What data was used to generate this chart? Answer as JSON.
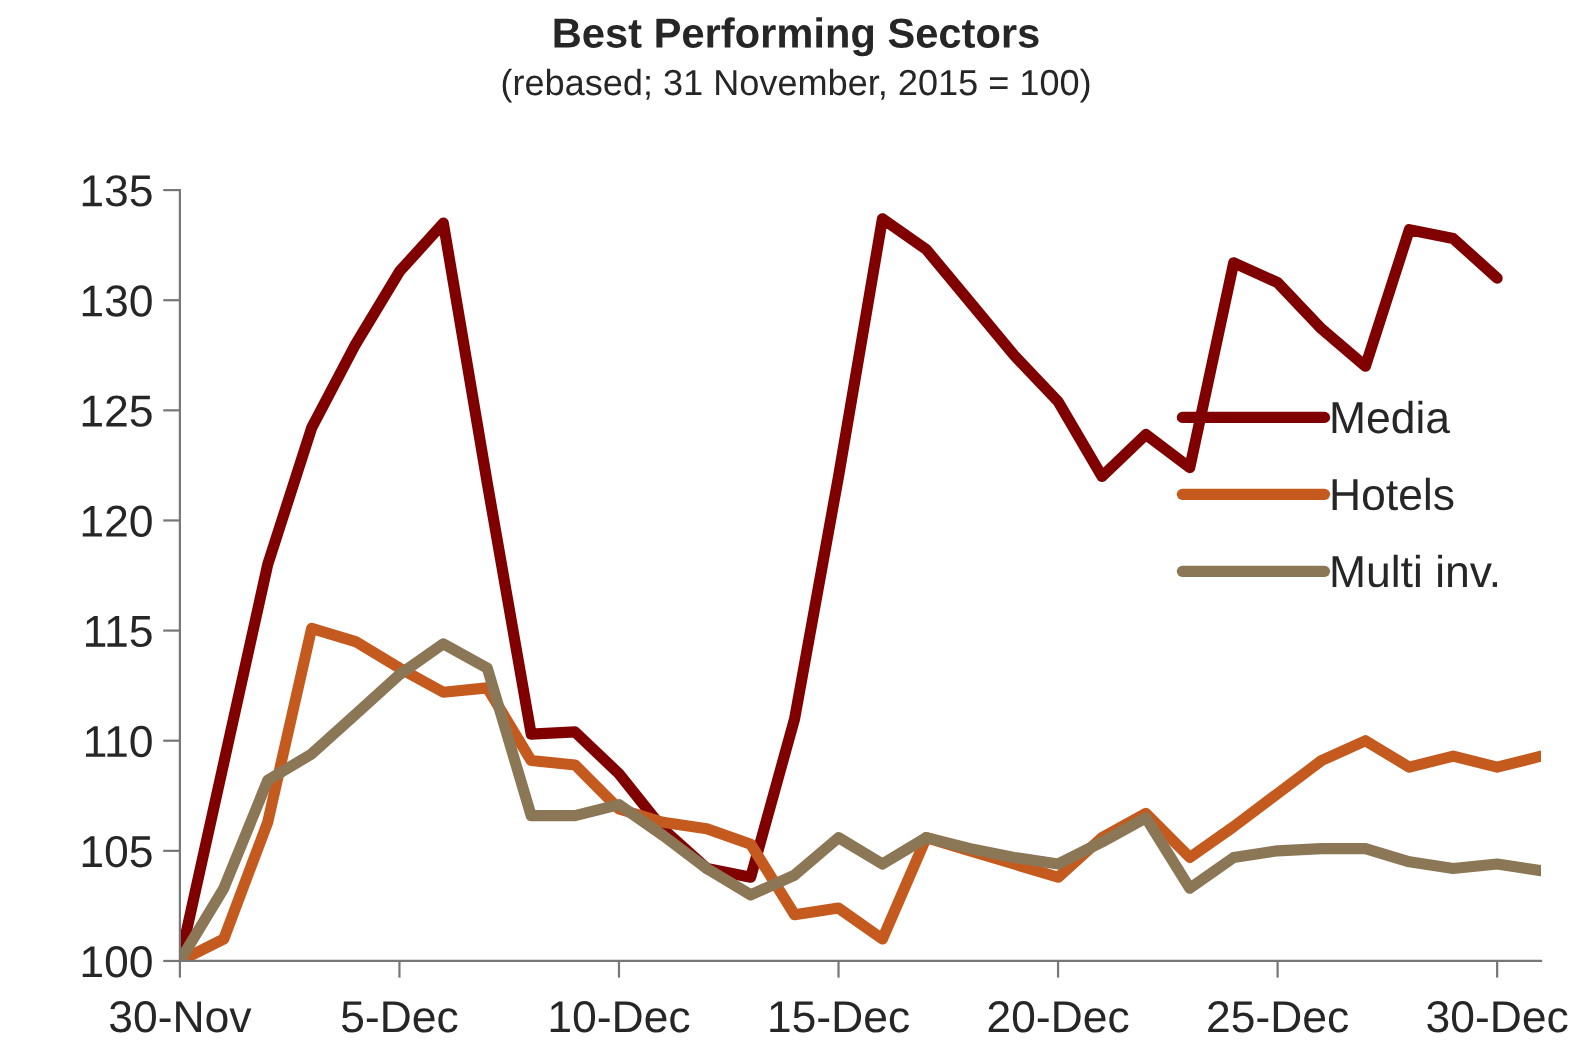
{
  "chart_data": {
    "type": "line",
    "title": "Best Performing Sectors",
    "subtitle": "(rebased; 31 November, 2015 = 100)",
    "x": [
      "2015-11-30",
      "2015-12-01",
      "2015-12-02",
      "2015-12-03",
      "2015-12-04",
      "2015-12-05",
      "2015-12-06",
      "2015-12-07",
      "2015-12-08",
      "2015-12-09",
      "2015-12-10",
      "2015-12-11",
      "2015-12-12",
      "2015-12-13",
      "2015-12-14",
      "2015-12-15",
      "2015-12-16",
      "2015-12-17",
      "2015-12-18",
      "2015-12-19",
      "2015-12-20",
      "2015-12-21",
      "2015-12-22",
      "2015-12-23",
      "2015-12-24",
      "2015-12-25",
      "2015-12-26",
      "2015-12-27",
      "2015-12-28",
      "2015-12-29",
      "2015-12-30",
      "2015-12-31"
    ],
    "series": [
      {
        "name": "Media",
        "color": "#800000",
        "values": [
          100,
          109,
          118,
          124.2,
          128,
          131.3,
          133.5,
          121.7,
          110.3,
          110.4,
          108.5,
          106,
          104.2,
          103.8,
          111,
          122,
          133.7,
          132.3,
          129.9,
          127.5,
          125.4,
          122,
          123.9,
          122.4,
          131.7,
          130.8,
          128.7,
          127,
          133.2,
          132.8,
          131,
          null
        ]
      },
      {
        "name": "Hotels",
        "color": "#c55a1e",
        "values": [
          100,
          101,
          106.3,
          115.1,
          114.5,
          113.3,
          112.2,
          112.4,
          109.1,
          108.9,
          106.9,
          106.3,
          106,
          105.3,
          102.1,
          102.4,
          101,
          105.6,
          105,
          104.4,
          103.8,
          105.6,
          106.7,
          104.7,
          106.1,
          107.6,
          109.1,
          110,
          108.8,
          109.3,
          108.8,
          109.3
        ]
      },
      {
        "name": "Multi inv.",
        "color": "#8b7755",
        "values": [
          100,
          103.3,
          108.2,
          109.4,
          111.2,
          113,
          114.4,
          113.3,
          106.6,
          106.6,
          107.1,
          105.7,
          104.2,
          103,
          103.9,
          105.6,
          104.4,
          105.6,
          105.1,
          104.7,
          104.4,
          105.4,
          106.5,
          103.3,
          104.7,
          105,
          105.1,
          105.1,
          104.5,
          104.2,
          104.4,
          104.1
        ]
      }
    ],
    "xlim": [
      "2015-11-30",
      "2015-12-31"
    ],
    "xticks": [
      {
        "value": "2015-11-30",
        "label": "30-Nov"
      },
      {
        "value": "2015-12-05",
        "label": "5-Dec"
      },
      {
        "value": "2015-12-10",
        "label": "10-Dec"
      },
      {
        "value": "2015-12-15",
        "label": "15-Dec"
      },
      {
        "value": "2015-12-20",
        "label": "20-Dec"
      },
      {
        "value": "2015-12-25",
        "label": "25-Dec"
      },
      {
        "value": "2015-12-30",
        "label": "30-Dec"
      }
    ],
    "ylim": [
      100,
      135
    ],
    "yticks": [
      100,
      105,
      110,
      115,
      120,
      125,
      130,
      135
    ],
    "legend": "right",
    "grid": false,
    "line_style": "solid",
    "marker": "none"
  }
}
